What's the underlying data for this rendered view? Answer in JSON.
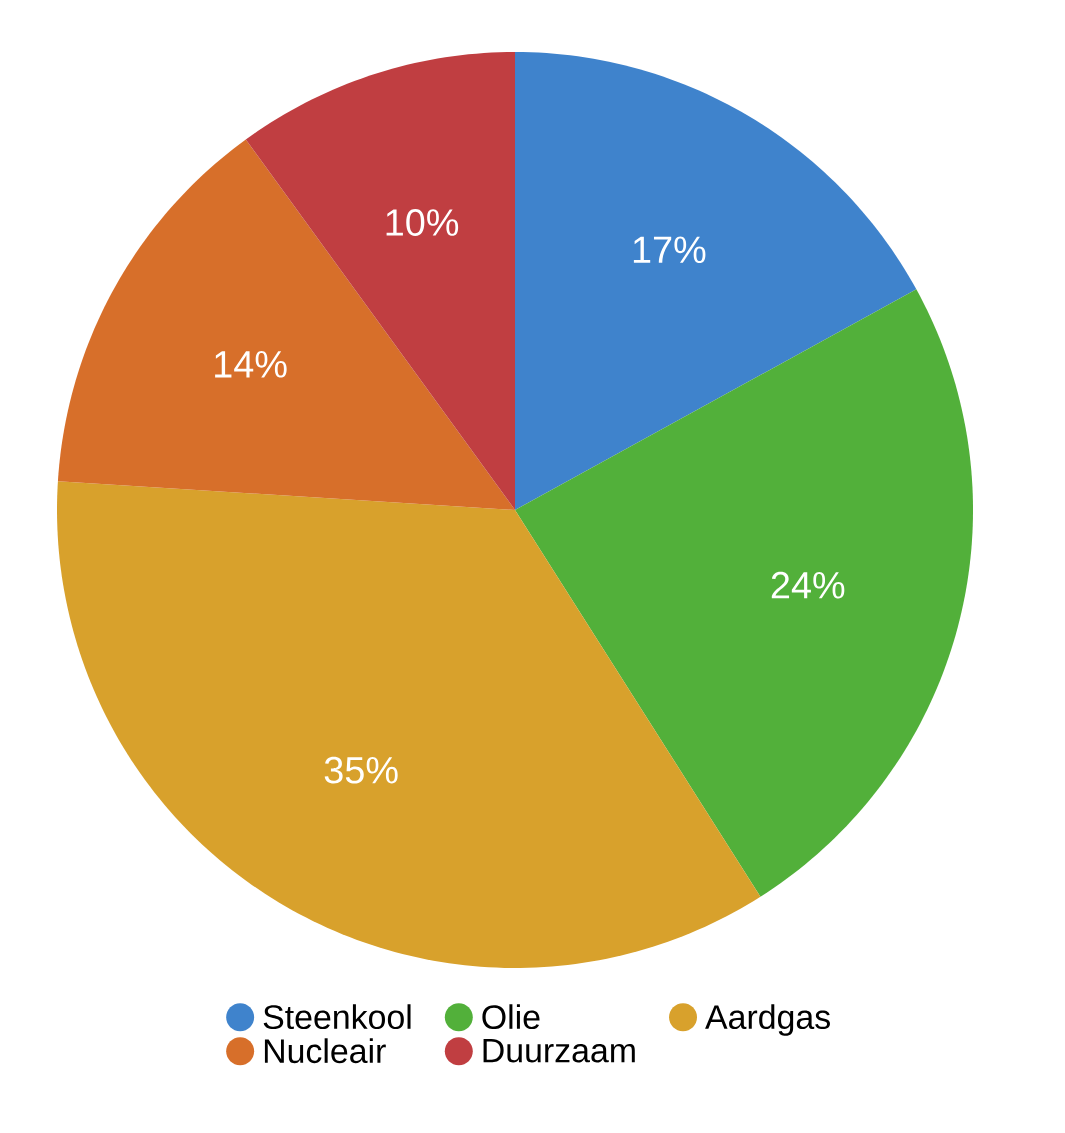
{
  "chart_data": {
    "type": "pie",
    "categories": [
      "Steenkool",
      "Olie",
      "Aardgas",
      "Nucleair",
      "Duurzaam"
    ],
    "values": [
      17,
      24,
      35,
      14,
      10
    ],
    "value_labels": [
      "17%",
      "24%",
      "35%",
      "14%",
      "10%"
    ],
    "colors": [
      "#3f83cc",
      "#52b03a",
      "#d8a12c",
      "#d76f2a",
      "#c03e41"
    ],
    "legend": "bottom"
  }
}
